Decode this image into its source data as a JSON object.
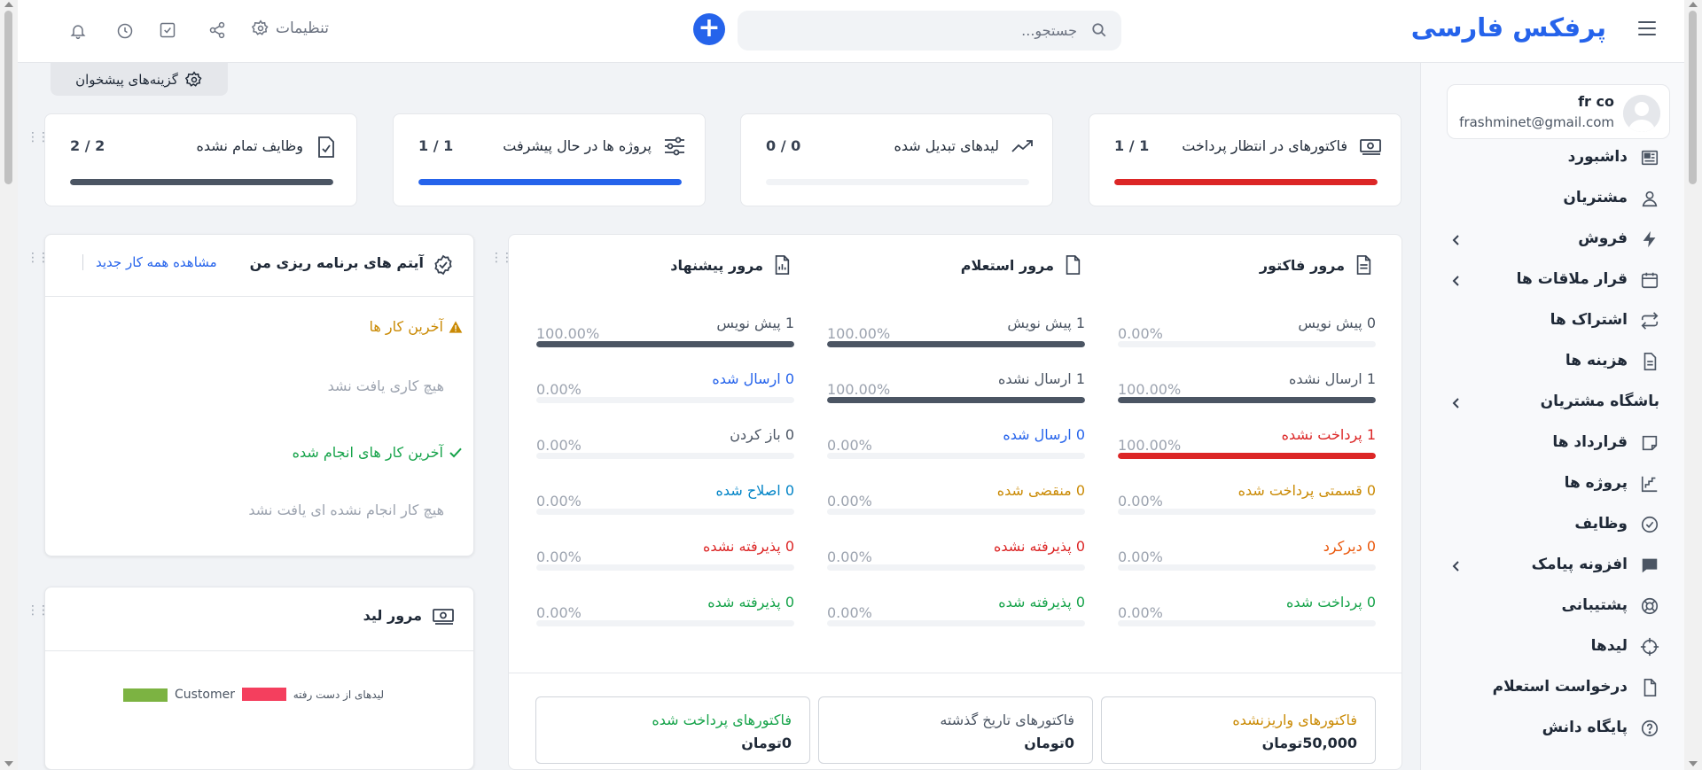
{
  "header": {
    "brand": "پرفکس فارسی",
    "search_placeholder": "جستجو...",
    "settings_label": "تنظیمات"
  },
  "user": {
    "name": "fr co",
    "email": "frashminet@gmail.com"
  },
  "sidebar": {
    "items": [
      {
        "label": "داشبورد",
        "icon": "dashboard-icon"
      },
      {
        "label": "مشتریان",
        "icon": "user-icon"
      },
      {
        "label": "فروش",
        "icon": "bolt-icon"
      },
      {
        "label": "قرار ملاقات ها",
        "icon": "calendar-icon"
      },
      {
        "label": "اشتراک ها",
        "icon": "repeat-icon"
      },
      {
        "label": "هزینه ها",
        "icon": "document-icon"
      },
      {
        "label": "باشگاه مشتریان",
        "icon": "none"
      },
      {
        "label": "قرارداد ها",
        "icon": "contract-icon"
      },
      {
        "label": "پروژه ها",
        "icon": "chart-steps-icon"
      },
      {
        "label": "وظایف",
        "icon": "check-circle-icon"
      },
      {
        "label": "افزونه پیامک",
        "icon": "chat-icon"
      },
      {
        "label": "پشتیبانی",
        "icon": "lifebuoy-icon"
      },
      {
        "label": "لیدها",
        "icon": "crosshair-icon"
      },
      {
        "label": "درخواست استعلام",
        "icon": "file-icon"
      },
      {
        "label": "پایگاه دانش",
        "icon": "question-icon"
      }
    ]
  },
  "dashboard_options": "گزینه‌های پیشخوان",
  "stats": [
    {
      "label": "فاکتورهای در انتظار پرداخت",
      "value": "1 / 1",
      "fraction": 1.0,
      "color": "#dc2626"
    },
    {
      "label": "لیدهای تبدیل شده",
      "value": "0 / 0",
      "fraction": 0.0,
      "color": "#9ca3af"
    },
    {
      "label": "پروژه ها در حال پیشرفت",
      "value": "1 / 1",
      "fraction": 1.0,
      "color": "#2563eb"
    },
    {
      "label": "وظایف تمام نشده",
      "value": "2 / 2",
      "fraction": 1.0,
      "color": "#4b5563"
    }
  ],
  "overview": {
    "columns": [
      {
        "title": "مرور فاکتور",
        "rows": [
          {
            "label": "0 پیش نویس",
            "pct": "0.00%",
            "fraction": 0.0,
            "color": "#4b5563"
          },
          {
            "label": "1 ارسال نشده",
            "pct": "100.00%",
            "fraction": 1.0,
            "color": "#4b5563"
          },
          {
            "label": "1 پرداخت نشده",
            "pct": "100.00%",
            "fraction": 1.0,
            "color": "#dc2626"
          },
          {
            "label": "0 قسمتی پرداخت شده",
            "pct": "0.00%",
            "fraction": 0.0,
            "color": "#ca8a04"
          },
          {
            "label": "0 دیرکرد",
            "pct": "0.00%",
            "fraction": 0.0,
            "color": "#ea580c"
          },
          {
            "label": "0 پرداخت شده",
            "pct": "0.00%",
            "fraction": 0.0,
            "color": "#16a34a"
          }
        ]
      },
      {
        "title": "مرور استعلام",
        "rows": [
          {
            "label": "1 پیش نویش",
            "pct": "100.00%",
            "fraction": 1.0,
            "color": "#4b5563"
          },
          {
            "label": "1 ارسال نشده",
            "pct": "100.00%",
            "fraction": 1.0,
            "color": "#4b5563"
          },
          {
            "label": "0 ارسال شده",
            "pct": "0.00%",
            "fraction": 0.0,
            "color": "#2563eb"
          },
          {
            "label": "0 منقضی شده",
            "pct": "0.00%",
            "fraction": 0.0,
            "color": "#ca8a04"
          },
          {
            "label": "0 پذیرفته نشده",
            "pct": "0.00%",
            "fraction": 0.0,
            "color": "#dc2626"
          },
          {
            "label": "0 پذیرفته شده",
            "pct": "0.00%",
            "fraction": 0.0,
            "color": "#16a34a"
          }
        ]
      },
      {
        "title": "مرور پیشنهاد",
        "rows": [
          {
            "label": "1 پیش نویس",
            "pct": "100.00%",
            "fraction": 1.0,
            "color": "#4b5563"
          },
          {
            "label": "0 ارسال شده",
            "pct": "0.00%",
            "fraction": 0.0,
            "color": "#2563eb"
          },
          {
            "label": "0 باز کردن",
            "pct": "0.00%",
            "fraction": 0.0,
            "color": "#4b5563"
          },
          {
            "label": "0 اصلاح شده",
            "pct": "0.00%",
            "fraction": 0.0,
            "color": "#0284c7"
          },
          {
            "label": "0 پذیرفته نشده",
            "pct": "0.00%",
            "fraction": 0.0,
            "color": "#dc2626"
          },
          {
            "label": "0 پذیرفته شده",
            "pct": "0.00%",
            "fraction": 0.0,
            "color": "#16a34a"
          }
        ]
      }
    ],
    "summaries": [
      {
        "label": "فاکتورهای واریزنشده",
        "value": "50,000تومان",
        "color": "#ca8a04"
      },
      {
        "label": "فاکتورهای تاریخ گذشته",
        "value": "0تومان",
        "color": "#4b5563"
      },
      {
        "label": "فاکتورهای پرداخت شده",
        "value": "0تومان",
        "color": "#16a34a"
      }
    ]
  },
  "planner": {
    "title": "آیتم های برنامه ریزی من",
    "link": "مشاهده همه کار جدید",
    "latest_title": "آخرین کار ها",
    "latest_empty": "هیچ کاری یافت نشد",
    "done_title": "آخرین کار های انجام شده",
    "done_empty": "هیچ کار انجام نشده ای یافت نشد"
  },
  "lead": {
    "title": "مرور لید",
    "legend": [
      {
        "label": "لیدهای از دست رفته",
        "color": "#f43f5e"
      },
      {
        "label": "Customer",
        "color": "#7cb342"
      }
    ]
  }
}
